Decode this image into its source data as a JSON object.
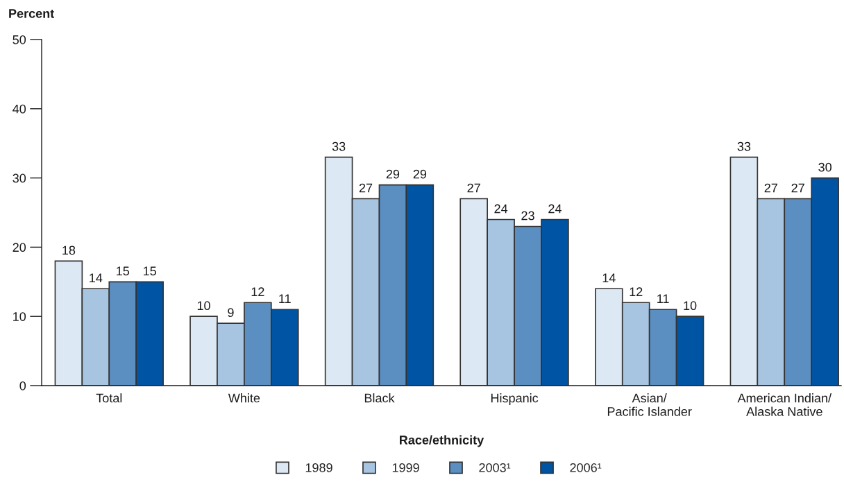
{
  "chart_data": {
    "type": "bar",
    "xlabel": "Race/ethnicity",
    "ylabel": "Percent",
    "categories": [
      "Total",
      "White",
      "Black",
      "Hispanic",
      "Asian/\nPacific Islander",
      "American Indian/\nAlaska Native"
    ],
    "series": [
      {
        "name": "1989",
        "color": "#dce8f3",
        "values": [
          18,
          10,
          33,
          27,
          14,
          33
        ]
      },
      {
        "name": "1999",
        "color": "#a7c4e1",
        "values": [
          14,
          9,
          27,
          24,
          12,
          27
        ]
      },
      {
        "name": "2003¹",
        "color": "#5b8fc2",
        "values": [
          15,
          12,
          29,
          23,
          11,
          27
        ]
      },
      {
        "name": "2006¹",
        "color": "#0054a4",
        "values": [
          15,
          11,
          29,
          24,
          10,
          30
        ]
      }
    ],
    "ylim": [
      0,
      50
    ],
    "yticks": [
      0,
      10,
      20,
      30,
      40,
      50
    ],
    "data_labels": true,
    "legend": "bottom"
  }
}
